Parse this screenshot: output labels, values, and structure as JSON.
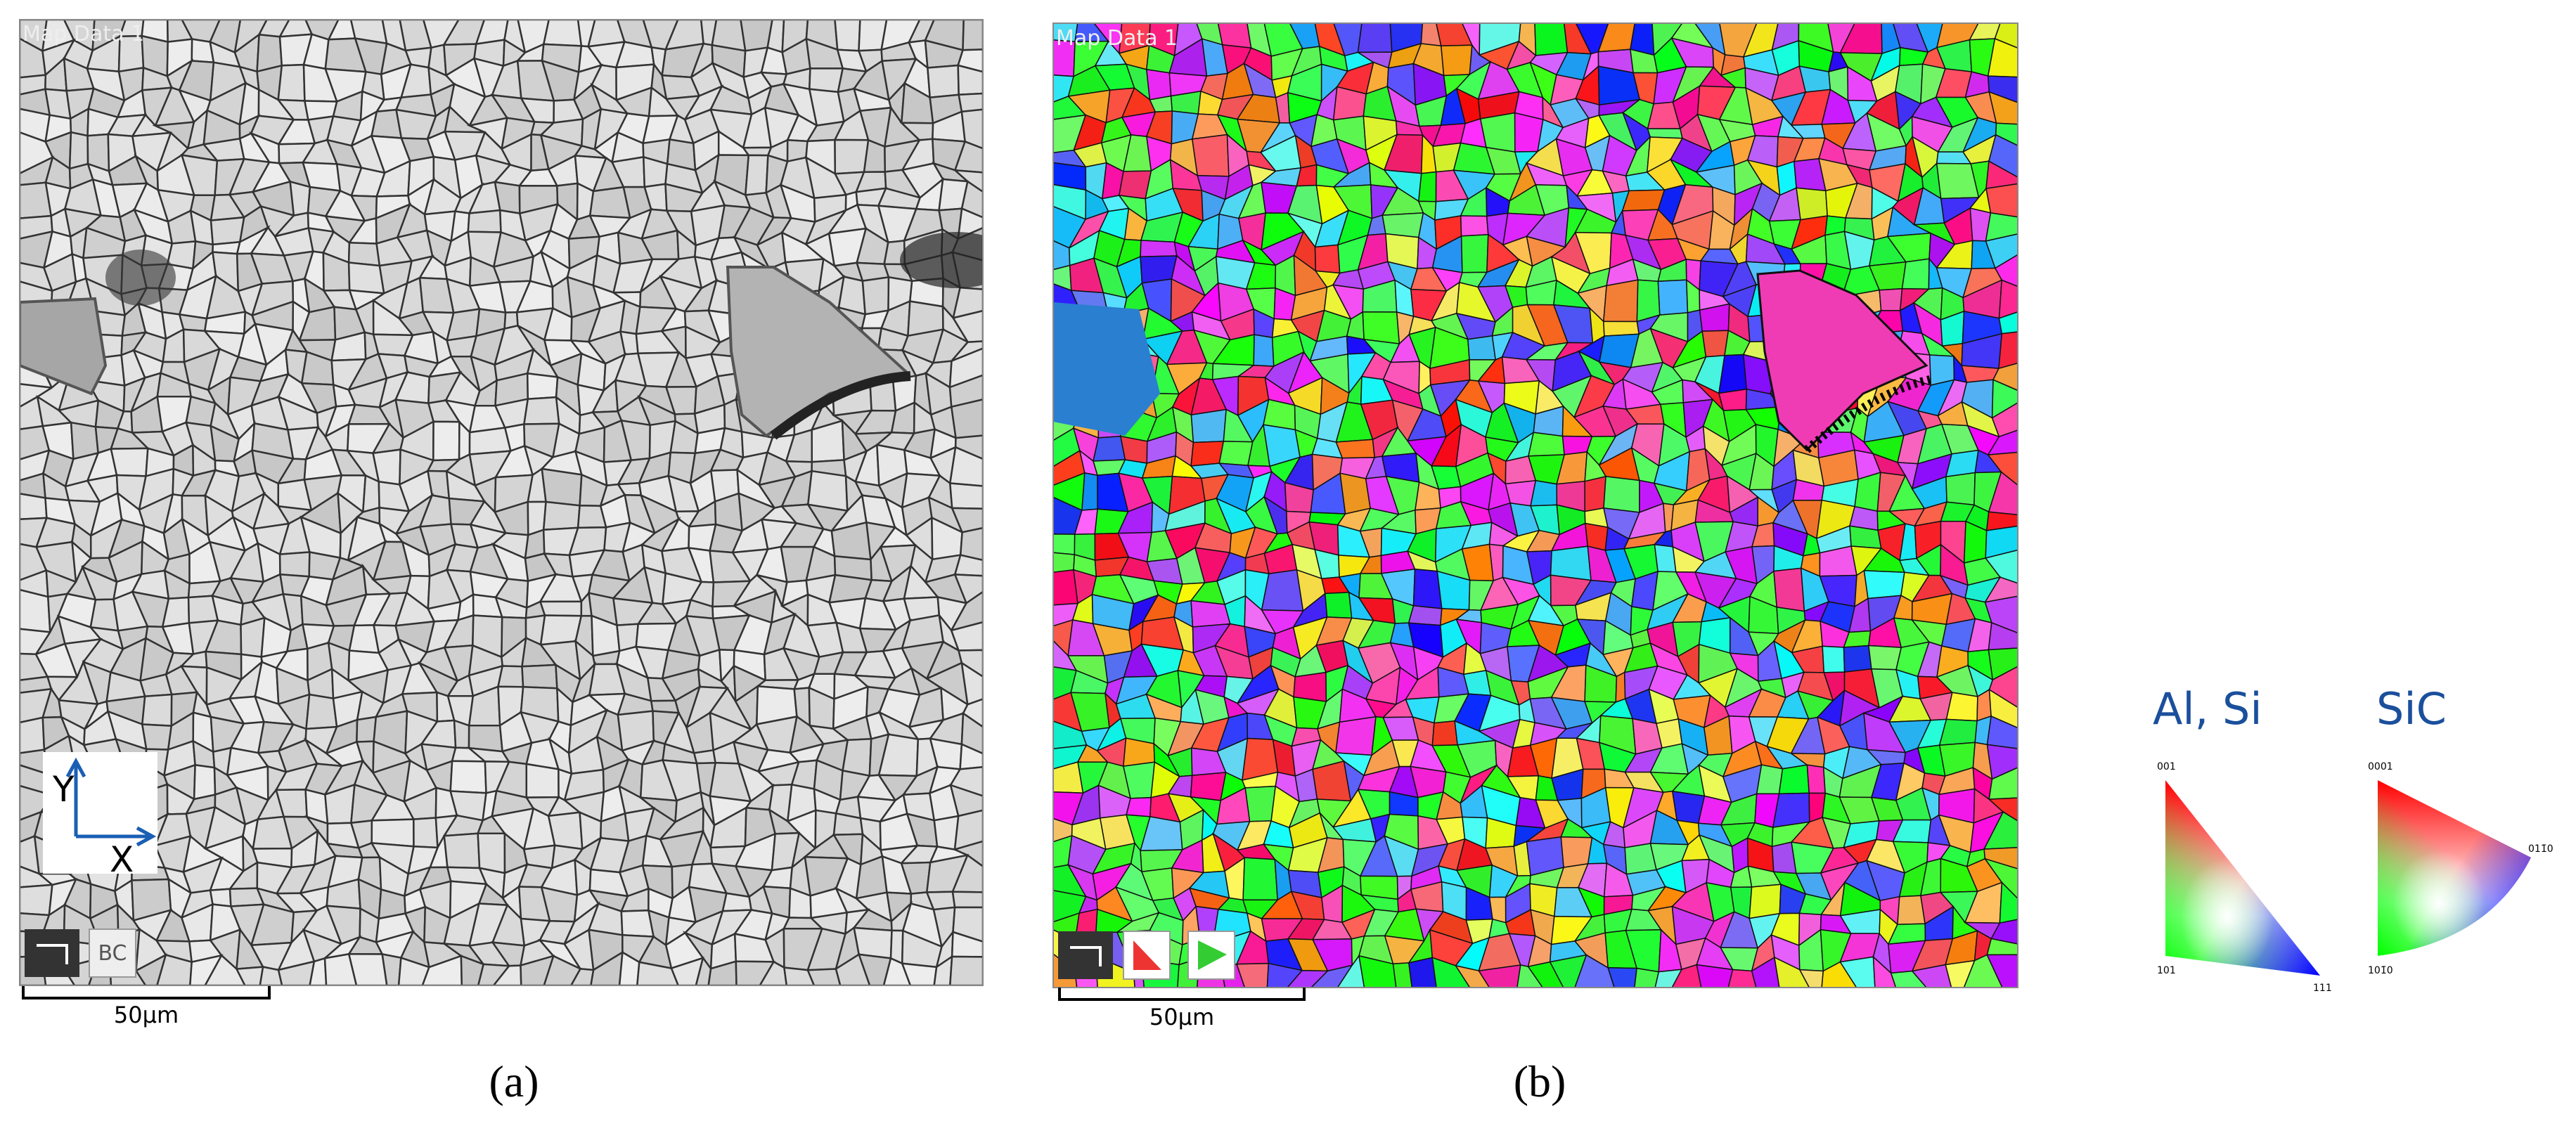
{
  "panel_a": {
    "map_title": "Map Data 1",
    "axis_y": "Y",
    "axis_x": "X",
    "layer_button": "BC",
    "scale_bar": "50µm",
    "caption": "(a)"
  },
  "panel_b": {
    "map_title": "Map Data 1",
    "scale_bar": "50µm",
    "caption": "(b)"
  },
  "legend": {
    "al_si": {
      "title": "Al, Si",
      "corners": [
        "001",
        "101",
        "111"
      ]
    },
    "sic": {
      "title": "SiC",
      "corners": [
        "0001",
        "101̄0",
        "011̄0"
      ]
    }
  }
}
